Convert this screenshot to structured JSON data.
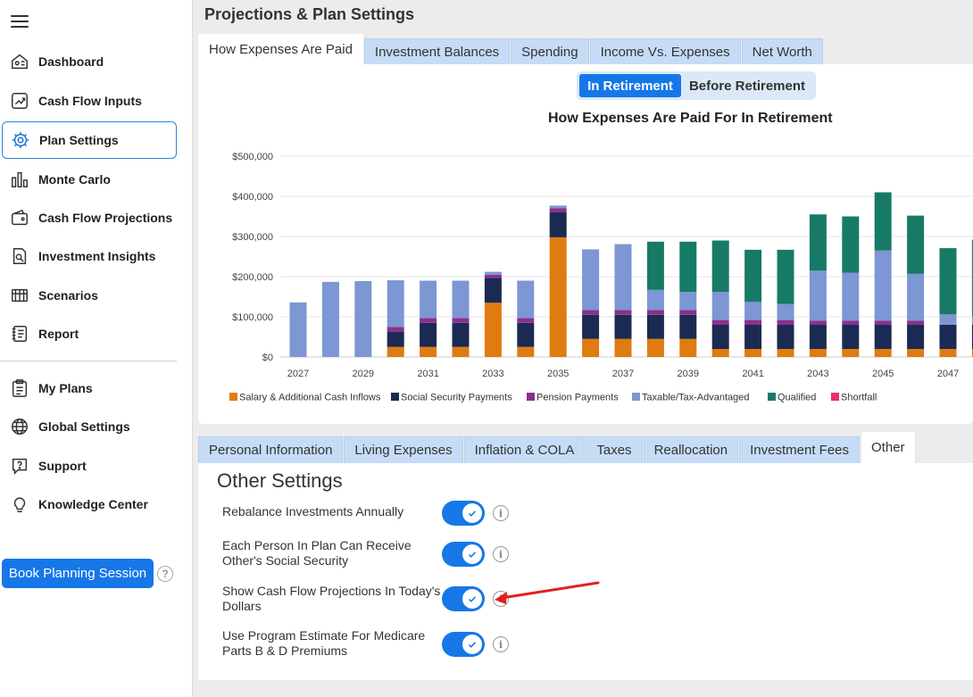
{
  "sidebar": {
    "items": [
      {
        "label": "Dashboard",
        "icon": "dashboard-icon"
      },
      {
        "label": "Cash Flow Inputs",
        "icon": "cash-flow-inputs-icon"
      },
      {
        "label": "Plan Settings",
        "icon": "gear-icon"
      },
      {
        "label": "Monte Carlo",
        "icon": "bar-chart-icon"
      },
      {
        "label": "Cash Flow Projections",
        "icon": "wallet-icon"
      },
      {
        "label": "Investment Insights",
        "icon": "document-search-icon"
      },
      {
        "label": "Scenarios",
        "icon": "scenarios-icon"
      },
      {
        "label": "Report",
        "icon": "report-icon"
      },
      {
        "label": "My Plans",
        "icon": "clipboard-icon"
      },
      {
        "label": "Global Settings",
        "icon": "globe-icon"
      },
      {
        "label": "Support",
        "icon": "support-icon"
      },
      {
        "label": "Knowledge Center",
        "icon": "lightbulb-icon"
      }
    ],
    "book_button": "Book Planning Session",
    "help_glyph": "?"
  },
  "page": {
    "title": "Projections & Plan Settings"
  },
  "chart_tabs": [
    {
      "label": "How Expenses Are Paid",
      "active": true
    },
    {
      "label": "Investment Balances",
      "active": false
    },
    {
      "label": "Spending",
      "active": false
    },
    {
      "label": "Income Vs. Expenses",
      "active": false
    },
    {
      "label": "Net Worth",
      "active": false
    }
  ],
  "mode_toggle": {
    "on_label": "In Retirement",
    "off_label": "Before Retirement"
  },
  "chart_data": {
    "type": "bar",
    "stacked": true,
    "title": "How Expenses Are Paid For In Retirement",
    "ylim": [
      0,
      500000
    ],
    "yticks": [
      "$0",
      "$100,000",
      "$200,000",
      "$300,000",
      "$400,000",
      "$500,000"
    ],
    "ytick_values": [
      0,
      100000,
      200000,
      300000,
      400000,
      500000
    ],
    "categories": [
      2027,
      2028,
      2029,
      2030,
      2031,
      2032,
      2033,
      2034,
      2035,
      2036,
      2037,
      2038,
      2039,
      2040,
      2041,
      2042,
      2043,
      2044,
      2045,
      2046,
      2047,
      2048
    ],
    "xtick_labels": [
      "2027",
      "2029",
      "2031",
      "2033",
      "2035",
      "2037",
      "2039",
      "2041",
      "2043",
      "2045",
      "2047"
    ],
    "series": [
      {
        "name": "Salary & Additional Cash Inflows",
        "color": "#e07b0f",
        "values": [
          0,
          0,
          0,
          25000,
          25000,
          25000,
          135000,
          25000,
          298000,
          45000,
          45000,
          45000,
          45000,
          20000,
          20000,
          20000,
          20000,
          20000,
          20000,
          20000,
          20000,
          20000
        ]
      },
      {
        "name": "Social Security Payments",
        "color": "#1b2a52",
        "values": [
          0,
          0,
          0,
          38000,
          60000,
          60000,
          62000,
          60000,
          62000,
          60000,
          60000,
          60000,
          60000,
          60000,
          60000,
          60000,
          60000,
          60000,
          60000,
          60000,
          60000,
          60000
        ]
      },
      {
        "name": "Pension Payments",
        "color": "#8b2f8f",
        "values": [
          0,
          0,
          0,
          12000,
          12000,
          12000,
          8000,
          12000,
          10000,
          12000,
          12000,
          12000,
          12000,
          12000,
          12000,
          12000,
          10000,
          10000,
          10000,
          10000,
          0,
          0
        ]
      },
      {
        "name": "Taxable/Tax-Advantaged",
        "color": "#7d96d4",
        "values": [
          136000,
          187000,
          189000,
          116000,
          93000,
          93000,
          7000,
          93000,
          7000,
          151000,
          164000,
          50000,
          45000,
          70000,
          45000,
          40000,
          125000,
          120000,
          175000,
          117000,
          26000,
          22000
        ]
      },
      {
        "name": "Qualified",
        "color": "#177a66",
        "values": [
          0,
          0,
          0,
          0,
          0,
          0,
          0,
          0,
          0,
          0,
          0,
          120000,
          125000,
          128000,
          130000,
          135000,
          140000,
          140000,
          145000,
          145000,
          165000,
          190000
        ]
      },
      {
        "name": "Shortfall",
        "color": "#e8306b",
        "values": [
          0,
          0,
          0,
          0,
          0,
          0,
          0,
          0,
          0,
          0,
          0,
          0,
          0,
          0,
          0,
          0,
          0,
          0,
          0,
          0,
          0,
          0
        ]
      }
    ]
  },
  "settings_tabs": [
    {
      "label": "Personal Information",
      "active": false
    },
    {
      "label": "Living Expenses",
      "active": false
    },
    {
      "label": "Inflation & COLA",
      "active": false
    },
    {
      "label": "Taxes",
      "active": false
    },
    {
      "label": "Reallocation",
      "active": false
    },
    {
      "label": "Investment Fees",
      "active": false
    },
    {
      "label": "Other",
      "active": true
    }
  ],
  "other_settings": {
    "heading": "Other Settings",
    "info_glyph": "i",
    "rows": [
      {
        "label": "Rebalance Investments Annually",
        "enabled": true
      },
      {
        "label": "Each Person In Plan Can Receive Other's Social Security",
        "enabled": true
      },
      {
        "label": "Show Cash Flow Projections In Today's Dollars",
        "enabled": true
      },
      {
        "label": "Use Program Estimate For Medicare Parts B & D Premiums",
        "enabled": true
      }
    ]
  },
  "annotation": {
    "color": "#e0201e"
  }
}
